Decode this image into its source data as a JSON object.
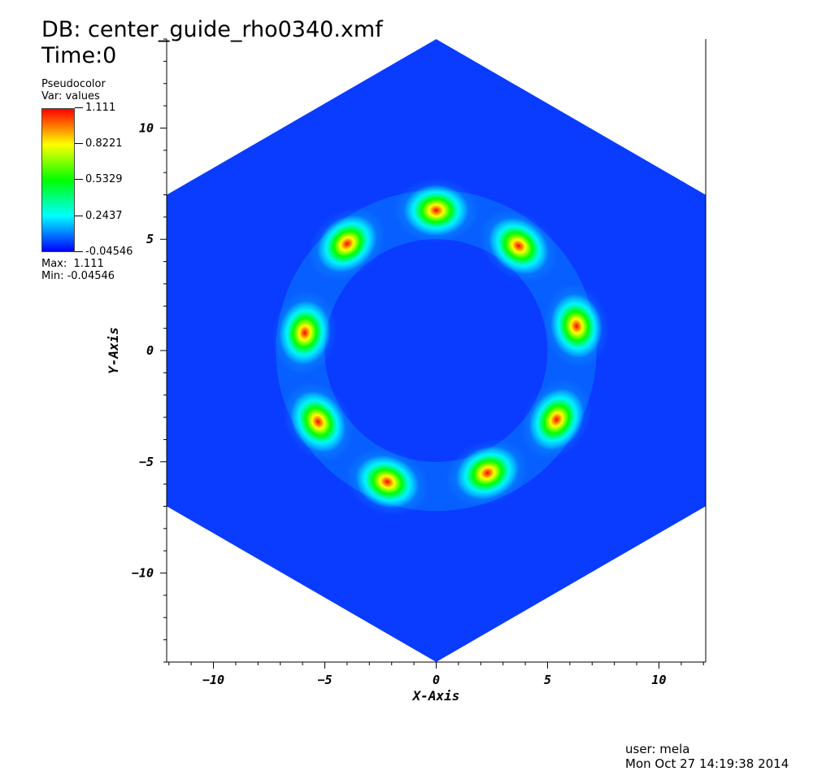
{
  "header": {
    "db_title": "DB: center_guide_rho0340.xmf",
    "time_label": "Time:0"
  },
  "legend": {
    "plot_type": "Pseudocolor",
    "var_label": "Var: values",
    "ticks": [
      "1.111",
      "0.8221",
      "0.5329",
      "0.2437",
      "-0.04546"
    ],
    "max_label": "Max:  1.111",
    "min_label": "Min: -0.04546",
    "colors": [
      "#ff0000",
      "#ffff00",
      "#00ff00",
      "#00ffff",
      "#0000ff"
    ]
  },
  "footer": {
    "user": "user: mela",
    "date": "Mon Oct 27 14:19:38 2014"
  },
  "chart_data": {
    "type": "heatmap",
    "xlabel": "X-Axis",
    "ylabel": "Y-Axis",
    "xlim": [
      -12.1,
      12.1
    ],
    "ylim": [
      -14,
      14
    ],
    "x_ticks": [
      -10,
      -5,
      0,
      5,
      10
    ],
    "y_ticks": [
      10,
      5,
      0,
      -5,
      -10
    ],
    "domain_shape": "hexagon",
    "hexagon_vertices": [
      [
        0,
        14
      ],
      [
        12.1,
        7
      ],
      [
        12.1,
        -7
      ],
      [
        0,
        -14
      ],
      [
        -12.1,
        -7
      ],
      [
        -12.1,
        7
      ]
    ],
    "value_range": [
      -0.04546,
      1.111
    ],
    "background_value": -0.04546,
    "background_color": "#0a3cff",
    "peaks": [
      {
        "x": 0.0,
        "y": 6.3,
        "value": 1.111
      },
      {
        "x": 3.7,
        "y": 4.7,
        "value": 1.111
      },
      {
        "x": 6.3,
        "y": 1.1,
        "value": 1.111
      },
      {
        "x": 5.4,
        "y": -3.1,
        "value": 1.111
      },
      {
        "x": 2.3,
        "y": -5.5,
        "value": 1.111
      },
      {
        "x": -2.2,
        "y": -5.9,
        "value": 1.111
      },
      {
        "x": -5.3,
        "y": -3.2,
        "value": 1.111
      },
      {
        "x": -5.9,
        "y": 0.8,
        "value": 1.111
      },
      {
        "x": -4.0,
        "y": 4.8,
        "value": 1.111
      }
    ]
  }
}
